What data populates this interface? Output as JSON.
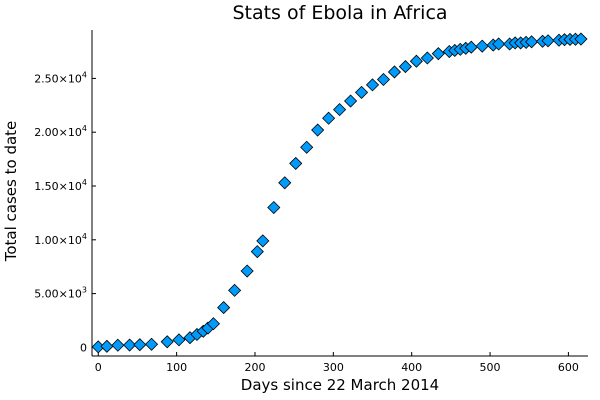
{
  "chart_data": {
    "type": "scatter",
    "title": "Stats of Ebola in Africa",
    "xlabel": "Days since 22 March 2014",
    "ylabel": "Total cases to date",
    "xlim": [
      -8,
      625
    ],
    "ylim": [
      -800,
      29500
    ],
    "grid": false,
    "legend": "none",
    "marker": "diamond",
    "color": "#009AFA",
    "x_ticks": [
      {
        "value": 0,
        "label": "0"
      },
      {
        "value": 100,
        "label": "100"
      },
      {
        "value": 200,
        "label": "200"
      },
      {
        "value": 300,
        "label": "300"
      },
      {
        "value": 400,
        "label": "400"
      },
      {
        "value": 500,
        "label": "500"
      },
      {
        "value": 600,
        "label": "600"
      }
    ],
    "y_ticks": [
      {
        "value": 0,
        "mantissa": "0",
        "exponent": ""
      },
      {
        "value": 5000,
        "mantissa": "5.00×10",
        "exponent": "3"
      },
      {
        "value": 10000,
        "mantissa": "1.00×10",
        "exponent": "4"
      },
      {
        "value": 15000,
        "mantissa": "1.50×10",
        "exponent": "4"
      },
      {
        "value": 20000,
        "mantissa": "2.00×10",
        "exponent": "4"
      },
      {
        "value": 25000,
        "mantissa": "2.50×10",
        "exponent": "4"
      }
    ],
    "series": [
      {
        "x": [
          0,
          11,
          25,
          40,
          53,
          68,
          88,
          103,
          117,
          126,
          134,
          140,
          147,
          160,
          174,
          190,
          203,
          210,
          224,
          238,
          252,
          266,
          280,
          294,
          308,
          322,
          336,
          350,
          364,
          378,
          392,
          406,
          420,
          434,
          448,
          455,
          462,
          469,
          476,
          490,
          504,
          511,
          525,
          532,
          539,
          546,
          553,
          567,
          574,
          588,
          595,
          602,
          609,
          616
        ],
        "y": [
          50,
          100,
          200,
          220,
          250,
          290,
          520,
          700,
          900,
          1200,
          1500,
          1800,
          2200,
          3700,
          5300,
          7100,
          8900,
          9900,
          13000,
          15300,
          17100,
          18600,
          20200,
          21300,
          22100,
          22900,
          23700,
          24400,
          24900,
          25600,
          26100,
          26600,
          26900,
          27300,
          27500,
          27600,
          27700,
          27800,
          27900,
          28000,
          28100,
          28200,
          28200,
          28300,
          28300,
          28350,
          28400,
          28450,
          28500,
          28550,
          28600,
          28620,
          28640,
          28660
        ]
      }
    ]
  }
}
